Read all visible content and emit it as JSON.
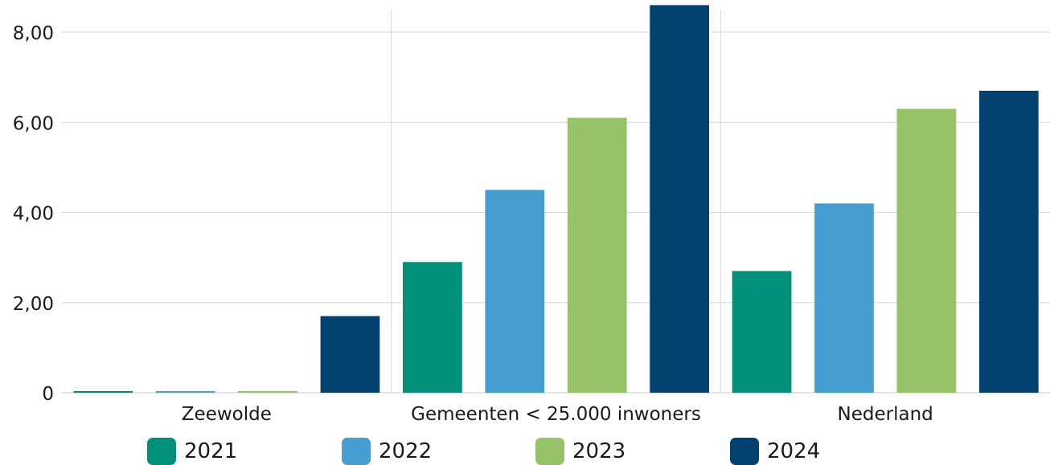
{
  "chart_data": {
    "type": "bar",
    "categories": [
      "Zeewolde",
      "Gemeenten < 25.000 inwoners",
      "Nederland"
    ],
    "series": [
      {
        "name": "2021",
        "color": "#009079",
        "values": [
          0.02,
          2.9,
          2.7
        ]
      },
      {
        "name": "2022",
        "color": "#459dd2",
        "values": [
          0.02,
          4.5,
          4.2
        ]
      },
      {
        "name": "2023",
        "color": "#96c367",
        "values": [
          0.02,
          6.1,
          6.3
        ]
      },
      {
        "name": "2024",
        "color": "#00416f",
        "values": [
          1.7,
          8.6,
          6.7
        ]
      }
    ],
    "yticks": [
      {
        "value": 0,
        "label": "0"
      },
      {
        "value": 2,
        "label": "2,00"
      },
      {
        "value": 4,
        "label": "4,00"
      },
      {
        "value": 6,
        "label": "6,00"
      },
      {
        "value": 8,
        "label": "8,00"
      }
    ],
    "ylim": [
      0,
      8.5
    ],
    "grid": true,
    "legend_position": "bottom",
    "title": "",
    "xlabel": "",
    "ylabel": ""
  }
}
